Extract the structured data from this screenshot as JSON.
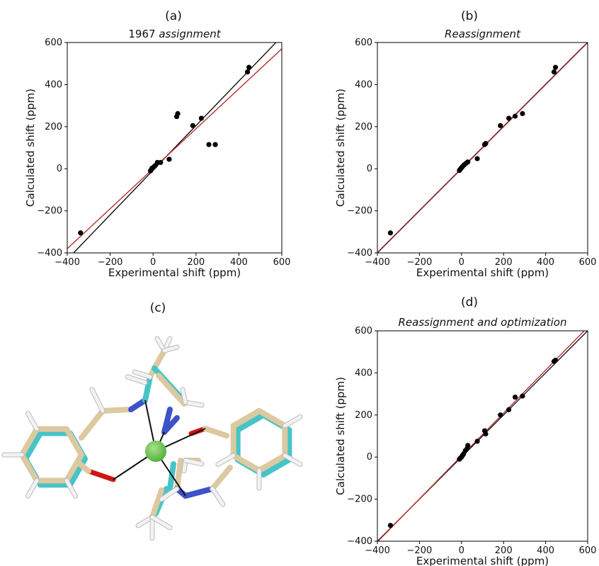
{
  "panels": {
    "a": {
      "label": "(a)"
    },
    "b": {
      "label": "(b)"
    },
    "c": {
      "label": "(c)"
    },
    "d": {
      "label": "(d)"
    }
  },
  "colors": {
    "black_line": "#000000",
    "red_line": "#b22222",
    "points": "#000000",
    "carbon_tan": "#dcc9a0",
    "carbon_cyan": "#46c4c8",
    "nitrogen": "#3d52c9",
    "oxygen": "#d01414",
    "hydrogen": "#f2f2f2",
    "metal": "#52b23a"
  },
  "chart_data": [
    {
      "type": "scatter",
      "panel": "a",
      "title_prefix": "1967",
      "title_italic": "assignment",
      "xlabel": "Experimental shift (ppm)",
      "ylabel": "Calculated shift (ppm)",
      "xlim": [
        -400,
        600
      ],
      "ylim": [
        -400,
        600
      ],
      "xticks": [
        -400,
        -200,
        0,
        200,
        400,
        600
      ],
      "yticks": [
        -400,
        -200,
        0,
        200,
        400,
        600
      ],
      "grid": false,
      "points": [
        [
          -338,
          -305
        ],
        [
          -12,
          -10
        ],
        [
          -8,
          -4
        ],
        [
          -5,
          2
        ],
        [
          0,
          5
        ],
        [
          5,
          10
        ],
        [
          10,
          15
        ],
        [
          20,
          30
        ],
        [
          35,
          30
        ],
        [
          75,
          45
        ],
        [
          110,
          248
        ],
        [
          115,
          262
        ],
        [
          185,
          205
        ],
        [
          225,
          240
        ],
        [
          260,
          115
        ],
        [
          290,
          115
        ],
        [
          440,
          460
        ],
        [
          447,
          482
        ]
      ],
      "lines": [
        {
          "color_key": "black_line",
          "slope": 1.06,
          "intercept": -7
        },
        {
          "color_key": "red_line",
          "slope": 0.95,
          "intercept": 0
        }
      ]
    },
    {
      "type": "scatter",
      "panel": "b",
      "title_prefix": "",
      "title_italic": "Reassignment",
      "xlabel": "Experimental shift (ppm)",
      "ylabel": "Calculated shift (ppm)",
      "xlim": [
        -400,
        600
      ],
      "ylim": [
        -400,
        600
      ],
      "xticks": [
        -400,
        -200,
        0,
        200,
        400,
        600
      ],
      "yticks": [
        -400,
        -200,
        0,
        200,
        400,
        600
      ],
      "grid": false,
      "points": [
        [
          -338,
          -305
        ],
        [
          -10,
          -8
        ],
        [
          -5,
          -2
        ],
        [
          0,
          5
        ],
        [
          5,
          10
        ],
        [
          12,
          18
        ],
        [
          20,
          25
        ],
        [
          30,
          32
        ],
        [
          75,
          48
        ],
        [
          110,
          115
        ],
        [
          115,
          120
        ],
        [
          185,
          205
        ],
        [
          225,
          240
        ],
        [
          255,
          250
        ],
        [
          290,
          262
        ],
        [
          440,
          460
        ],
        [
          447,
          482
        ]
      ],
      "lines": [
        {
          "color_key": "black_line",
          "slope": 1.0,
          "intercept": 0
        },
        {
          "color_key": "red_line",
          "slope": 1.0,
          "intercept": 2
        }
      ]
    },
    {
      "type": "scatter",
      "panel": "d",
      "title_prefix": "",
      "title_italic": "Reassignment and optimization",
      "xlabel": "Experimental shift (ppm)",
      "ylabel": "Calculated shift (ppm)",
      "xlim": [
        -400,
        600
      ],
      "ylim": [
        -400,
        600
      ],
      "xticks": [
        -400,
        -200,
        0,
        200,
        400,
        600
      ],
      "yticks": [
        -400,
        -200,
        0,
        200,
        400,
        600
      ],
      "grid": false,
      "points": [
        [
          -338,
          -325
        ],
        [
          -10,
          -10
        ],
        [
          -5,
          -5
        ],
        [
          0,
          0
        ],
        [
          5,
          8
        ],
        [
          10,
          15
        ],
        [
          18,
          30
        ],
        [
          25,
          38
        ],
        [
          30,
          55
        ],
        [
          75,
          75
        ],
        [
          110,
          125
        ],
        [
          115,
          110
        ],
        [
          185,
          200
        ],
        [
          225,
          225
        ],
        [
          255,
          285
        ],
        [
          290,
          290
        ],
        [
          440,
          455
        ],
        [
          447,
          460
        ]
      ],
      "lines": [
        {
          "color_key": "black_line",
          "slope": 1.0,
          "intercept": 0
        },
        {
          "color_key": "red_line",
          "slope": 1.02,
          "intercept": 5
        }
      ]
    }
  ]
}
